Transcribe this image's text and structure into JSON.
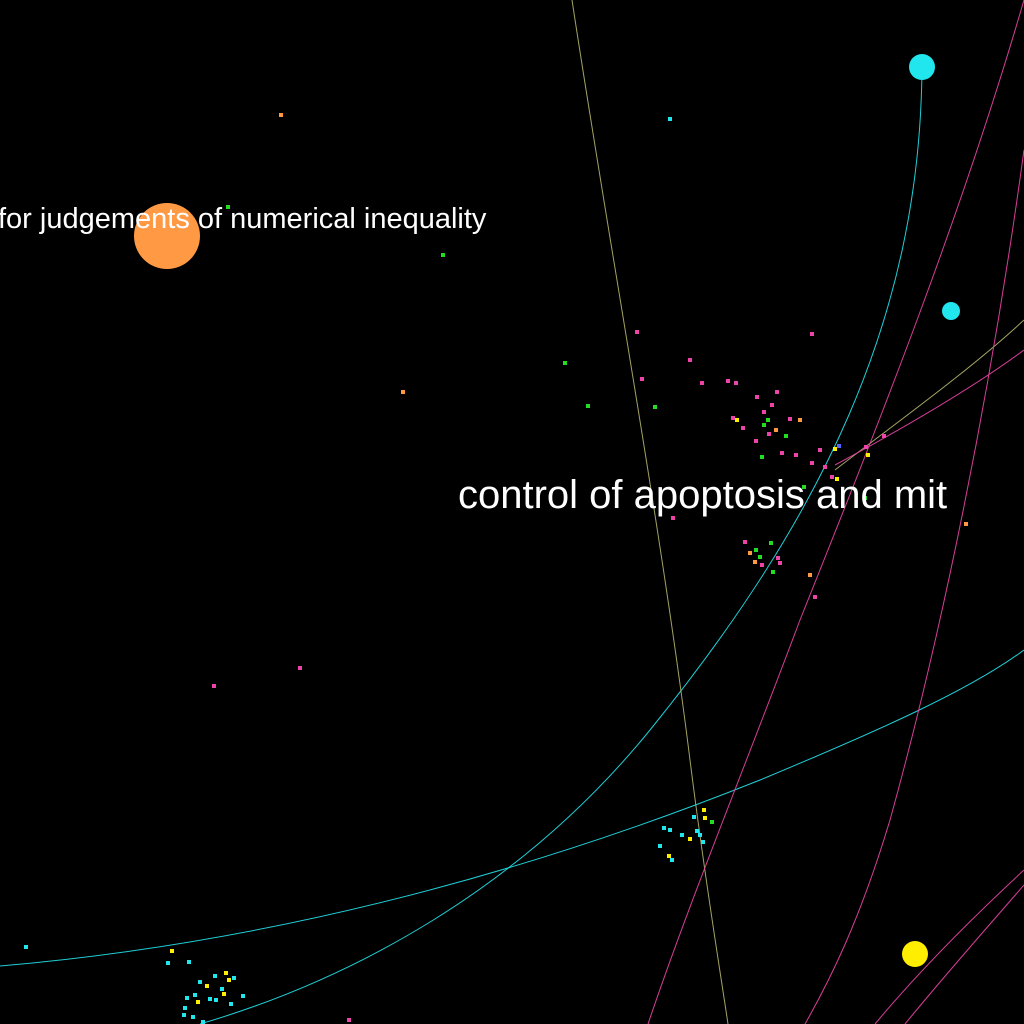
{
  "labels": {
    "numerical": "for judgements of numerical inequality",
    "apoptosis": "control of apoptosis and mit"
  },
  "palette": {
    "background": "#000000",
    "cyan": "#22e6ee",
    "magenta": "#ee44aa",
    "green": "#22dd22",
    "orange": "#ff9944",
    "yellow": "#ffee00",
    "blue": "#5566ff",
    "olive": "#b5b56e"
  }
}
